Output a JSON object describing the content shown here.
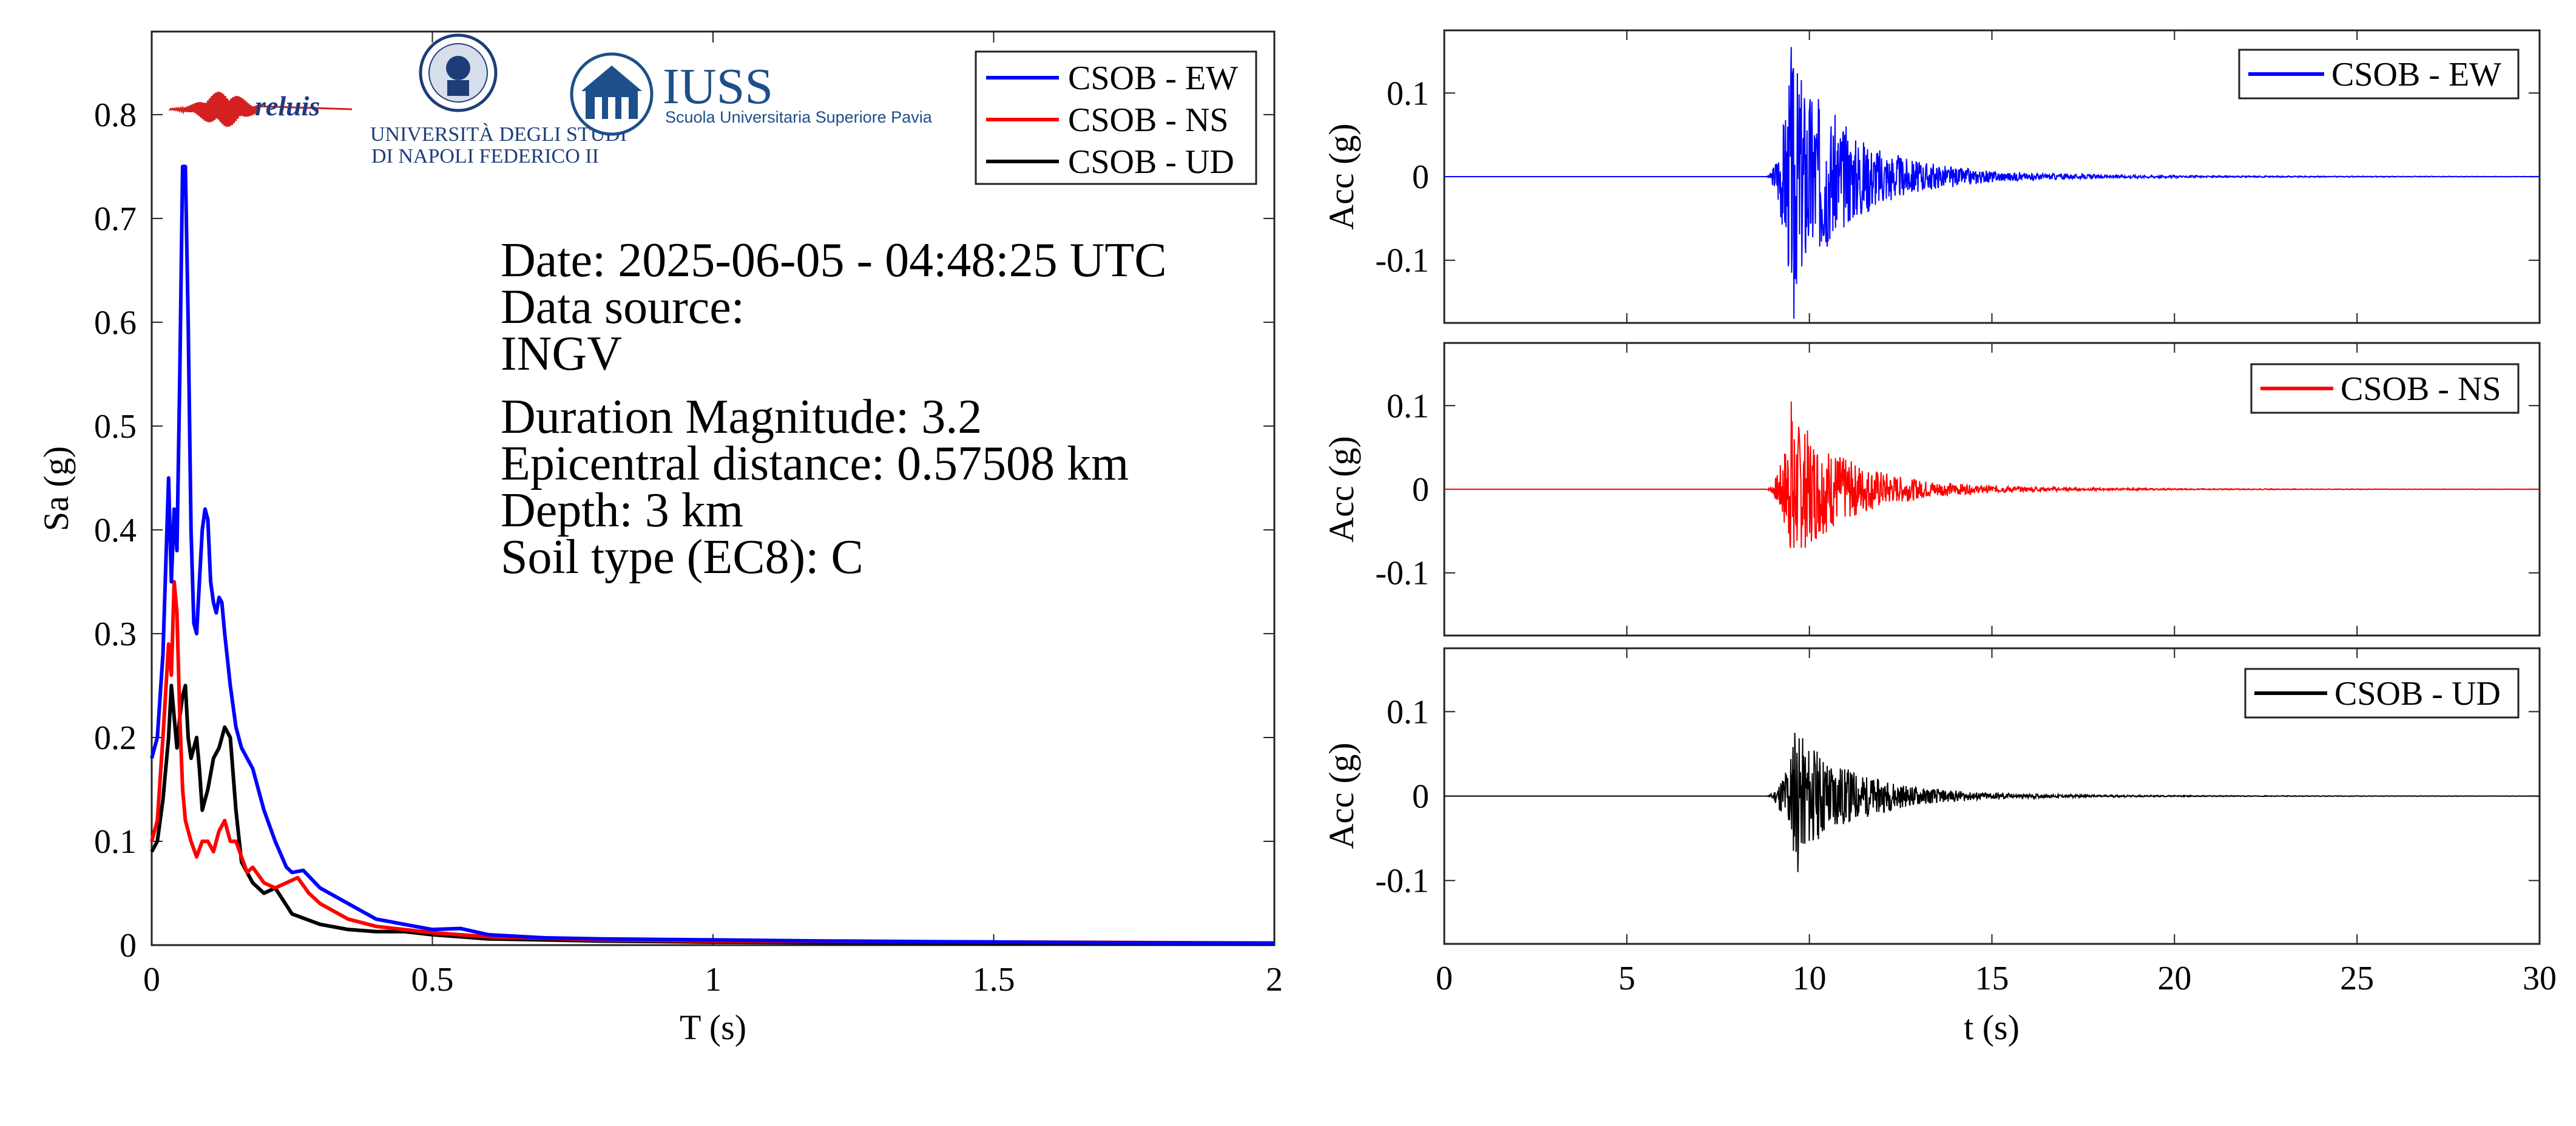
{
  "chart_data": [
    {
      "type": "line",
      "xlabel": "T (s)",
      "ylabel": "Sa (g)",
      "xlim": [
        0,
        2
      ],
      "ylim": [
        0,
        0.88
      ],
      "xticks": [
        "0",
        "0.5",
        "1",
        "1.5",
        "2"
      ],
      "yticks": [
        "0",
        "0.1",
        "0.2",
        "0.3",
        "0.4",
        "0.5",
        "0.6",
        "0.7",
        "0.8"
      ],
      "legend_position": "top-right",
      "series": [
        {
          "name": "CSOB - EW",
          "color": "#0000ff",
          "x": [
            0,
            0.01,
            0.02,
            0.03,
            0.035,
            0.04,
            0.045,
            0.05,
            0.055,
            0.06,
            0.065,
            0.07,
            0.075,
            0.08,
            0.085,
            0.09,
            0.095,
            0.1,
            0.105,
            0.11,
            0.115,
            0.12,
            0.125,
            0.13,
            0.14,
            0.15,
            0.16,
            0.18,
            0.2,
            0.22,
            0.24,
            0.25,
            0.27,
            0.3,
            0.35,
            0.4,
            0.45,
            0.5,
            0.55,
            0.6,
            0.7,
            0.8,
            1.0,
            1.2,
            1.5,
            1.8,
            2.0
          ],
          "y": [
            0.18,
            0.2,
            0.28,
            0.45,
            0.35,
            0.42,
            0.38,
            0.55,
            0.75,
            0.75,
            0.6,
            0.4,
            0.31,
            0.3,
            0.35,
            0.4,
            0.42,
            0.41,
            0.35,
            0.33,
            0.32,
            0.335,
            0.33,
            0.3,
            0.25,
            0.21,
            0.19,
            0.17,
            0.13,
            0.1,
            0.075,
            0.07,
            0.072,
            0.055,
            0.04,
            0.025,
            0.02,
            0.015,
            0.016,
            0.01,
            0.007,
            0.006,
            0.005,
            0.004,
            0.003,
            0.002,
            0.002
          ]
        },
        {
          "name": "CSOB - NS",
          "color": "#ff0000",
          "x": [
            0,
            0.01,
            0.02,
            0.03,
            0.035,
            0.04,
            0.045,
            0.05,
            0.055,
            0.06,
            0.07,
            0.08,
            0.09,
            0.1,
            0.11,
            0.12,
            0.13,
            0.14,
            0.15,
            0.17,
            0.18,
            0.2,
            0.22,
            0.24,
            0.26,
            0.28,
            0.3,
            0.35,
            0.4,
            0.5,
            0.6,
            0.8,
            1.0,
            1.5,
            2.0
          ],
          "y": [
            0.1,
            0.12,
            0.2,
            0.29,
            0.26,
            0.35,
            0.32,
            0.22,
            0.15,
            0.12,
            0.1,
            0.085,
            0.1,
            0.1,
            0.09,
            0.11,
            0.12,
            0.1,
            0.1,
            0.07,
            0.075,
            0.06,
            0.055,
            0.06,
            0.065,
            0.05,
            0.04,
            0.025,
            0.018,
            0.012,
            0.008,
            0.005,
            0.004,
            0.003,
            0.002
          ]
        },
        {
          "name": "CSOB - UD",
          "color": "#000000",
          "x": [
            0,
            0.01,
            0.02,
            0.03,
            0.035,
            0.04,
            0.045,
            0.05,
            0.055,
            0.06,
            0.065,
            0.07,
            0.075,
            0.08,
            0.085,
            0.09,
            0.1,
            0.11,
            0.12,
            0.13,
            0.14,
            0.15,
            0.16,
            0.18,
            0.2,
            0.22,
            0.25,
            0.3,
            0.35,
            0.4,
            0.45,
            0.5,
            0.6,
            0.8,
            1.0,
            1.5,
            2.0
          ],
          "y": [
            0.09,
            0.1,
            0.14,
            0.2,
            0.25,
            0.22,
            0.19,
            0.22,
            0.24,
            0.25,
            0.2,
            0.18,
            0.19,
            0.2,
            0.17,
            0.13,
            0.15,
            0.18,
            0.19,
            0.21,
            0.2,
            0.13,
            0.08,
            0.06,
            0.05,
            0.055,
            0.03,
            0.02,
            0.015,
            0.013,
            0.013,
            0.01,
            0.006,
            0.004,
            0.003,
            0.002,
            0.001
          ]
        }
      ],
      "annotations": [
        "Date: 2025-06-05 - 04:48:25 UTC",
        "Data source:",
        "INGV",
        "Duration Magnitude: 3.2",
        "Epicentral distance: 0.57508 km",
        "Depth: 3 km",
        "Soil type (EC8): C"
      ]
    },
    {
      "type": "line",
      "ylabel": "Acc (g)",
      "xlim": [
        0,
        30
      ],
      "ylim": [
        -0.175,
        0.175
      ],
      "yticks": [
        "0.1",
        "0",
        "-0.1"
      ],
      "legend_position": "top-right",
      "series": [
        {
          "name": "CSOB - EW",
          "color": "#0000ff"
        }
      ],
      "waveform": {
        "onset_s": 8.8,
        "peak_time_s": 9.5,
        "peak_pos_g": 0.155,
        "peak_neg_g": -0.17,
        "decay_end_s": 16
      }
    },
    {
      "type": "line",
      "ylabel": "Acc (g)",
      "xlim": [
        0,
        30
      ],
      "ylim": [
        -0.175,
        0.175
      ],
      "yticks": [
        "0.1",
        "0",
        "-0.1"
      ],
      "legend_position": "top-right",
      "series": [
        {
          "name": "CSOB - NS",
          "color": "#ff0000"
        }
      ],
      "waveform": {
        "onset_s": 8.8,
        "peak_time_s": 9.5,
        "peak_pos_g": 0.105,
        "peak_neg_g": -0.07,
        "decay_end_s": 16
      }
    },
    {
      "type": "line",
      "xlabel": "t (s)",
      "ylabel": "Acc (g)",
      "xlim": [
        0,
        30
      ],
      "ylim": [
        -0.175,
        0.175
      ],
      "xticks": [
        "0",
        "5",
        "10",
        "15",
        "20",
        "25",
        "30"
      ],
      "yticks": [
        "0.1",
        "0",
        "-0.1"
      ],
      "legend_position": "top-right",
      "series": [
        {
          "name": "CSOB - UD",
          "color": "#000000"
        }
      ],
      "waveform": {
        "onset_s": 8.8,
        "peak_time_s": 9.6,
        "peak_pos_g": 0.075,
        "peak_neg_g": -0.09,
        "decay_end_s": 15
      }
    }
  ],
  "logos": {
    "reluis": "reluis",
    "unina_line1": "UNIVERSITÀ DEGLI STUDI",
    "unina_line2": "DI NAPOLI FEDERICO II",
    "iuss_title": "IUSS",
    "iuss_sub": "Scuola Universitaria Superiore Pavia"
  }
}
